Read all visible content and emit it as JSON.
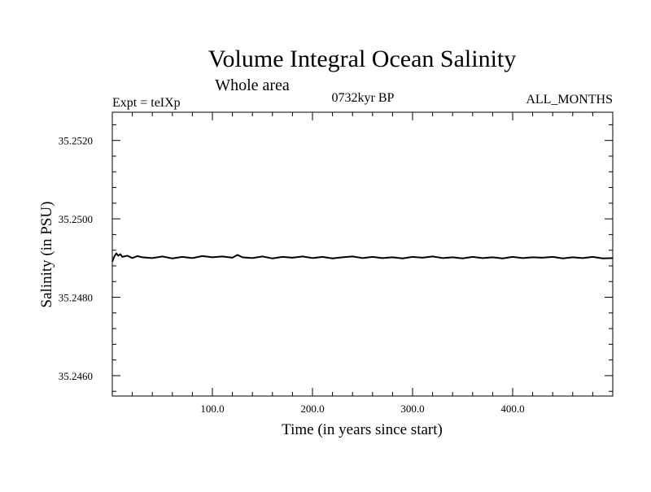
{
  "chart_data": {
    "type": "line",
    "title": "Volume Integral Ocean Salinity",
    "subtitle": "Whole area",
    "annotation_left": "Expt = teIXp",
    "annotation_center": "0732kyr BP",
    "annotation_right": "ALL_MONTHS",
    "xlabel": "Time (in years since start)",
    "ylabel": "Salinity (in PSU)",
    "xlim": [
      0,
      500
    ],
    "ylim": [
      35.24548,
      35.25272
    ],
    "x_tick_labels": [
      "100.0",
      "200.0",
      "300.0",
      "400.0"
    ],
    "x_ticks": [
      100,
      200,
      300,
      400
    ],
    "y_tick_labels": [
      "35.2460",
      "35.2480",
      "35.2500",
      "35.2520"
    ],
    "y_ticks": [
      35.246,
      35.248,
      35.25,
      35.252
    ],
    "grid": false,
    "series": [
      {
        "color": "#000000",
        "x": [
          0,
          2,
          4,
          6,
          8,
          10,
          15,
          20,
          25,
          30,
          40,
          50,
          60,
          70,
          80,
          90,
          100,
          110,
          120,
          125,
          130,
          140,
          150,
          160,
          170,
          180,
          190,
          200,
          210,
          220,
          230,
          240,
          250,
          260,
          270,
          280,
          290,
          300,
          310,
          320,
          330,
          340,
          350,
          360,
          370,
          380,
          390,
          400,
          410,
          420,
          430,
          440,
          450,
          460,
          470,
          480,
          490,
          500
        ],
        "y": [
          35.24891,
          35.24904,
          35.24912,
          35.24906,
          35.2491,
          35.24903,
          35.24906,
          35.249,
          35.24905,
          35.24902,
          35.249,
          35.24904,
          35.24899,
          35.24903,
          35.249,
          35.24905,
          35.24902,
          35.24904,
          35.24901,
          35.24908,
          35.24902,
          35.249,
          35.24904,
          35.24899,
          35.24903,
          35.24901,
          35.24904,
          35.249,
          35.24903,
          35.24899,
          35.24902,
          35.24904,
          35.249,
          35.24903,
          35.249,
          35.24902,
          35.24899,
          35.24903,
          35.24901,
          35.24904,
          35.249,
          35.24902,
          35.24899,
          35.24903,
          35.249,
          35.24902,
          35.24899,
          35.24903,
          35.249,
          35.24902,
          35.24901,
          35.24903,
          35.24899,
          35.24902,
          35.249,
          35.24903,
          35.24899,
          35.249
        ]
      }
    ]
  }
}
